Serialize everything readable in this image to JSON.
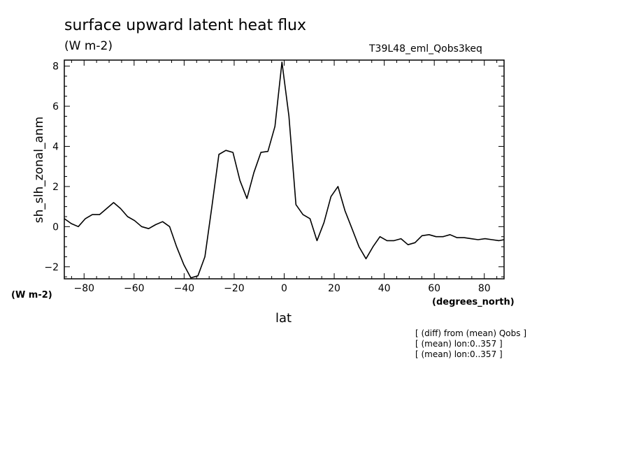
{
  "chart_data": {
    "type": "line",
    "title": "surface upward latent heat flux",
    "units": "(W m-2)",
    "run_label": "T39L48_eml_Qobs3keq",
    "ylabel": "sh_slh_zonal_anm",
    "yunits": "(W m-2)",
    "xlabel": "lat",
    "xunits": "(degrees_north)",
    "xlim": [
      -87.9,
      87.9
    ],
    "ylim": [
      -2.6,
      8.3
    ],
    "xticks": [
      -80,
      -60,
      -40,
      -20,
      0,
      20,
      40,
      60,
      80
    ],
    "xtick_labels": [
      "−80",
      "−60",
      "−40",
      "−20",
      "0",
      "20",
      "40",
      "60",
      "80"
    ],
    "yticks": [
      -2,
      0,
      2,
      4,
      6,
      8
    ],
    "ytick_labels": [
      "−2",
      "0",
      "2",
      "4",
      "6",
      "8"
    ],
    "grid": false,
    "series": [
      {
        "x": [
          -87.9,
          -85.1,
          -82.3,
          -79.5,
          -76.7,
          -73.8,
          -71.0,
          -68.2,
          -65.4,
          -62.6,
          -59.8,
          -57.0,
          -54.2,
          -51.4,
          -48.6,
          -45.8,
          -43.0,
          -40.1,
          -37.3,
          -34.5,
          -31.7,
          -28.9,
          -26.1,
          -23.3,
          -20.5,
          -17.7,
          -14.9,
          -12.1,
          -9.3,
          -6.5,
          -3.7,
          -0.9,
          1.9,
          4.7,
          7.5,
          10.3,
          13.1,
          15.9,
          18.7,
          21.5,
          24.3,
          27.1,
          29.9,
          32.7,
          35.5,
          38.3,
          41.1,
          43.9,
          46.7,
          49.5,
          52.3,
          55.1,
          57.9,
          60.7,
          63.5,
          66.3,
          69.1,
          71.9,
          74.7,
          77.5,
          80.3,
          83.1,
          85.9,
          87.9
        ],
        "values": [
          0.4,
          0.15,
          0.0,
          0.4,
          0.6,
          0.6,
          0.9,
          1.2,
          0.9,
          0.5,
          0.3,
          0.0,
          -0.1,
          0.1,
          0.25,
          0.0,
          -1.0,
          -1.9,
          -2.55,
          -2.45,
          -1.5,
          1.0,
          3.6,
          3.8,
          3.7,
          2.3,
          1.4,
          2.7,
          3.7,
          3.75,
          5.0,
          8.2,
          5.5,
          1.1,
          0.6,
          0.4,
          -0.7,
          0.2,
          1.5,
          2.0,
          0.8,
          -0.1,
          -1.0,
          -1.6,
          -1.0,
          -0.5,
          -0.7,
          -0.7,
          -0.6,
          -0.9,
          -0.8,
          -0.45,
          -0.4,
          -0.5,
          -0.5,
          -0.4,
          -0.55,
          -0.55,
          -0.6,
          -0.65,
          -0.6,
          -0.65,
          -0.7,
          -0.65
        ]
      }
    ]
  },
  "notes": [
    "[ (diff) from (mean) Qobs ]",
    "[ (mean) lon:0..357 ]",
    "[ (mean) lon:0..357 ]"
  ]
}
